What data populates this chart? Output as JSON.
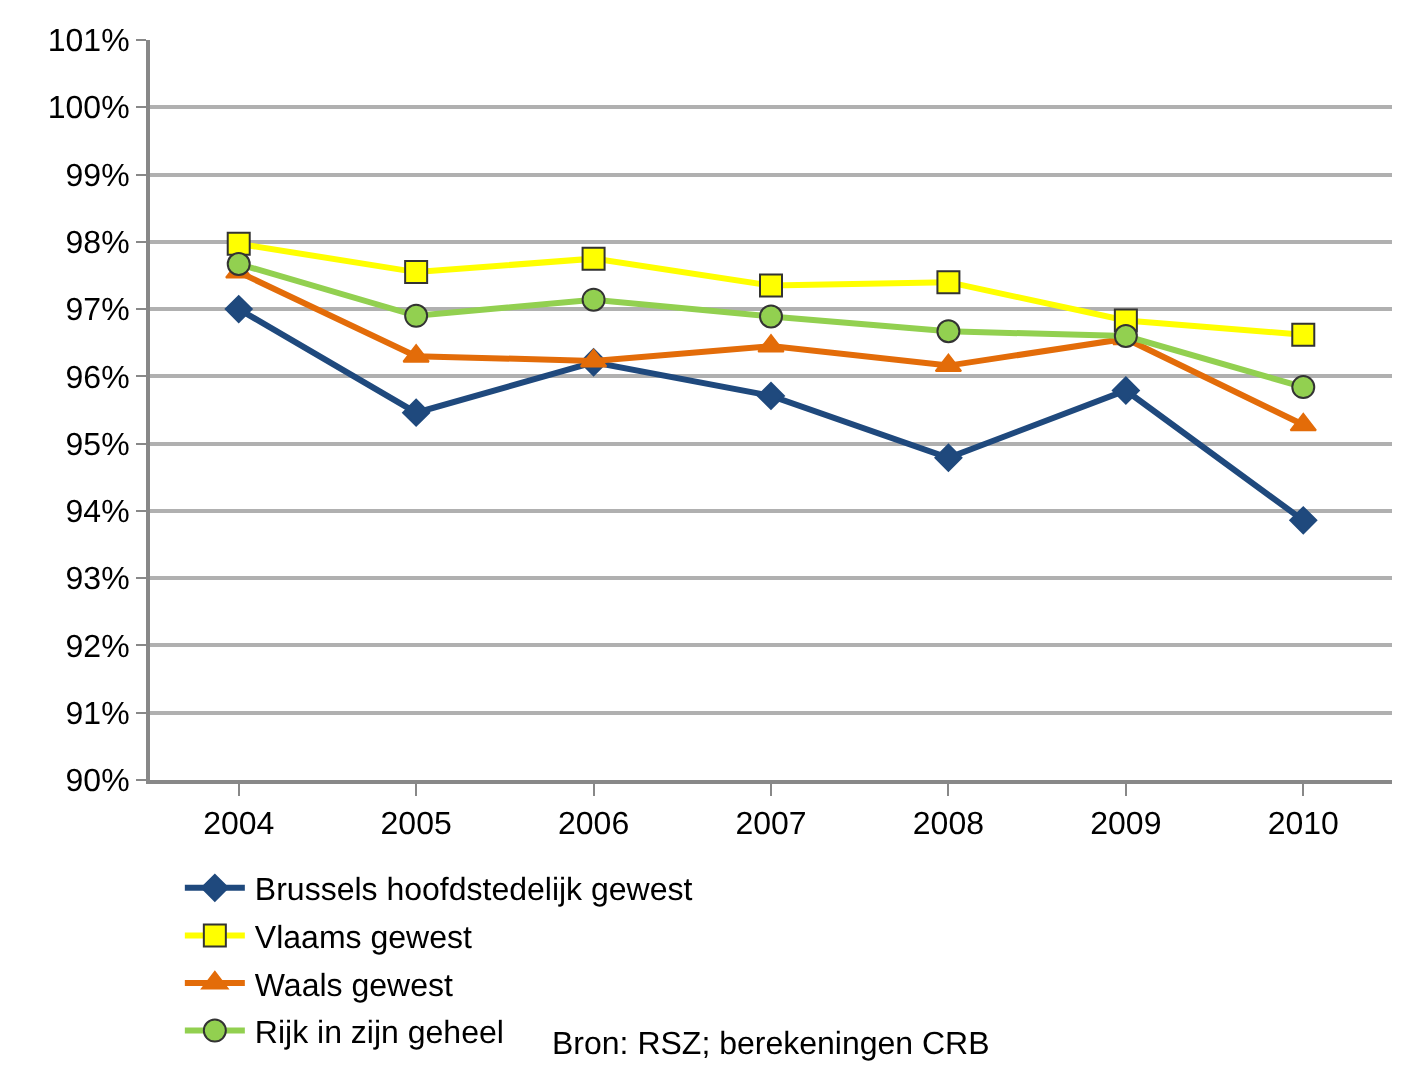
{
  "chart_data": {
    "type": "line",
    "categories": [
      "2004",
      "2005",
      "2006",
      "2007",
      "2008",
      "2009",
      "2010"
    ],
    "series": [
      {
        "name": "Brussels hoofdstedelijk gewest",
        "color": "#1f497d",
        "marker": "diamond",
        "values": [
          97.0,
          95.46,
          96.21,
          95.71,
          94.79,
          95.79,
          93.86
        ]
      },
      {
        "name": "Vlaams gewest",
        "color": "#ffff00",
        "marker": "square",
        "values": [
          97.97,
          97.55,
          97.75,
          97.35,
          97.4,
          96.83,
          96.62
        ]
      },
      {
        "name": "Waals gewest",
        "color": "#e36c09",
        "marker": "triangle",
        "values": [
          97.55,
          96.3,
          96.23,
          96.45,
          96.16,
          96.56,
          95.28
        ]
      },
      {
        "name": "Rijk in zijn geheel",
        "color": "#92d050",
        "marker": "circle",
        "values": [
          97.67,
          96.9,
          97.14,
          96.89,
          96.67,
          96.6,
          95.84
        ]
      }
    ],
    "ylim": [
      90,
      101
    ],
    "yticks": [
      {
        "value": 90,
        "label": "90%"
      },
      {
        "value": 91,
        "label": "91%"
      },
      {
        "value": 92,
        "label": "92%"
      },
      {
        "value": 93,
        "label": "93%"
      },
      {
        "value": 94,
        "label": "94%"
      },
      {
        "value": 95,
        "label": "95%"
      },
      {
        "value": 96,
        "label": "96%"
      },
      {
        "value": 97,
        "label": "97%"
      },
      {
        "value": 98,
        "label": "98%"
      },
      {
        "value": 99,
        "label": "99%"
      },
      {
        "value": 100,
        "label": "100%"
      },
      {
        "value": 101,
        "label": "101%"
      }
    ],
    "grid": "y",
    "legend": "bottom",
    "line_style": "solid",
    "annotations": [
      "Bron: RSZ; berekeningen CRB"
    ]
  }
}
